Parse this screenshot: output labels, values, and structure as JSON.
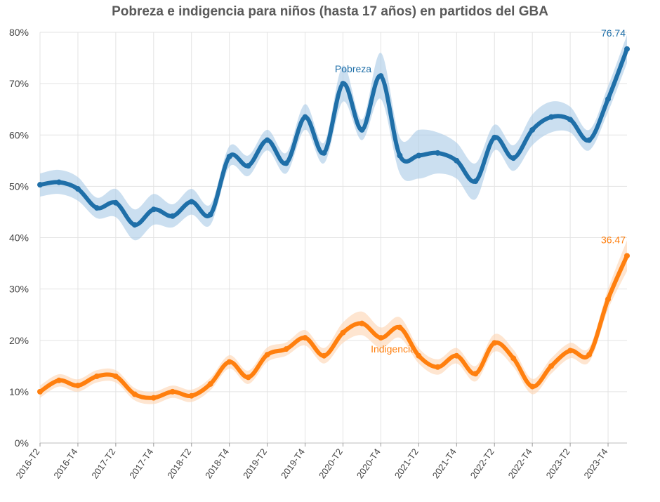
{
  "chart_data": {
    "type": "line",
    "title": "Pobreza e indigencia para niños (hasta 17 años) en partidos del GBA",
    "xlabel": "",
    "ylabel": "",
    "ylim": [
      0,
      80
    ],
    "yticks": [
      "0%",
      "10%",
      "20%",
      "30%",
      "40%",
      "50%",
      "60%",
      "70%",
      "80%"
    ],
    "x": [
      "2016-T2",
      "2016-T3",
      "2016-T4",
      "2017-T1",
      "2017-T2",
      "2017-T3",
      "2017-T4",
      "2018-T1",
      "2018-T2",
      "2018-T3",
      "2018-T4",
      "2019-T1",
      "2019-T2",
      "2019-T3",
      "2019-T4",
      "2020-T1",
      "2020-T2",
      "2020-T3",
      "2020-T4",
      "2021-T1",
      "2021-T2",
      "2021-T3",
      "2021-T4",
      "2022-T1",
      "2022-T2",
      "2022-T3",
      "2022-T4",
      "2023-T1",
      "2023-T2",
      "2023-T3",
      "2023-T4",
      "2024-T1"
    ],
    "xtick_labels": [
      "2016-T2",
      "2016-T4",
      "2017-T2",
      "2017-T4",
      "2018-T2",
      "2018-T4",
      "2019-T2",
      "2019-T4",
      "2020-T2",
      "2020-T4",
      "2021-T2",
      "2021-T4",
      "2022-T2",
      "2022-T4",
      "2023-T2",
      "2023-T4"
    ],
    "grid": true,
    "series": [
      {
        "name": "Pobreza",
        "color": "#1f6fa8",
        "band_color": "#a9c9e6",
        "values": [
          50.3,
          50.8,
          49.5,
          45.8,
          46.8,
          42.5,
          45.5,
          44.2,
          47.0,
          44.5,
          55.8,
          54.0,
          59.0,
          54.5,
          63.5,
          56.5,
          70.0,
          61.0,
          71.5,
          56.0,
          56.0,
          56.5,
          55.0,
          51.0,
          59.5,
          55.5,
          61.0,
          63.5,
          63.0,
          59.0,
          67.0,
          76.74
        ],
        "lower": [
          48.0,
          48.5,
          47.2,
          43.8,
          44.0,
          39.5,
          42.5,
          42.0,
          44.5,
          42.5,
          53.8,
          52.0,
          57.0,
          52.5,
          61.0,
          54.5,
          66.5,
          59.0,
          67.0,
          52.5,
          51.5,
          52.5,
          51.5,
          47.5,
          57.0,
          53.0,
          58.0,
          60.5,
          60.5,
          57.0,
          64.5,
          74.0
        ],
        "upper": [
          52.5,
          53.2,
          51.8,
          47.8,
          49.5,
          45.5,
          48.5,
          46.5,
          49.5,
          46.5,
          57.8,
          56.0,
          61.0,
          56.5,
          66.0,
          58.5,
          73.5,
          63.0,
          76.0,
          59.5,
          61.0,
          60.5,
          58.5,
          54.5,
          62.0,
          58.0,
          64.0,
          66.5,
          65.5,
          61.0,
          69.5,
          79.5
        ],
        "end_label": "76.74"
      },
      {
        "name": "Indigencia",
        "color": "#ff7f0e",
        "band_color": "#fdd3b0",
        "values": [
          10.0,
          12.2,
          11.2,
          13.0,
          13.0,
          9.5,
          8.8,
          10.0,
          9.2,
          11.5,
          15.8,
          12.8,
          17.2,
          18.3,
          20.5,
          17.0,
          21.5,
          23.3,
          20.5,
          22.5,
          17.0,
          14.8,
          17.0,
          13.5,
          19.5,
          16.5,
          11.0,
          15.0,
          18.0,
          17.2,
          28.0,
          36.47
        ],
        "lower": [
          8.8,
          11.0,
          10.0,
          11.8,
          11.8,
          8.3,
          7.6,
          8.8,
          8.0,
          10.3,
          14.5,
          11.5,
          15.8,
          17.0,
          19.0,
          15.5,
          19.5,
          21.0,
          18.5,
          20.5,
          15.5,
          13.3,
          15.5,
          12.0,
          17.8,
          14.8,
          9.5,
          13.5,
          16.5,
          15.8,
          26.0,
          33.5
        ],
        "upper": [
          11.2,
          13.4,
          12.4,
          14.2,
          14.2,
          10.7,
          10.0,
          11.2,
          10.4,
          12.7,
          17.1,
          14.1,
          18.6,
          19.6,
          22.0,
          18.5,
          23.5,
          25.6,
          22.5,
          24.5,
          18.5,
          16.3,
          18.5,
          15.0,
          21.2,
          18.2,
          12.5,
          16.5,
          19.5,
          18.6,
          30.0,
          39.5
        ],
        "end_label": "36.47"
      }
    ]
  }
}
